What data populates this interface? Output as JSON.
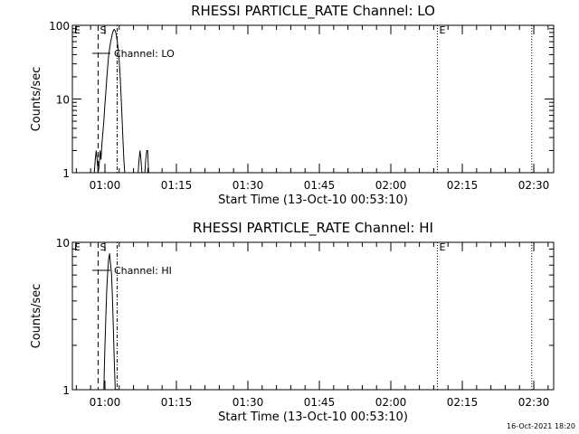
{
  "chart_data": [
    {
      "type": "line",
      "title": "RHESSI PARTICLE_RATE Channel: LO",
      "ylabel": "Counts/sec",
      "xlabel": "Start Time (13-Oct-10 00:53:10)",
      "x_units": "minutes since 00:53:10",
      "xlim": [
        0,
        101
      ],
      "ylim": [
        1,
        100
      ],
      "yscale": "log",
      "x_ticks": [
        {
          "value": 6.83,
          "label": "01:00"
        },
        {
          "value": 21.83,
          "label": "01:15"
        },
        {
          "value": 36.83,
          "label": "01:30"
        },
        {
          "value": 51.83,
          "label": "01:45"
        },
        {
          "value": 66.83,
          "label": "02:00"
        },
        {
          "value": 81.83,
          "label": "02:15"
        },
        {
          "value": 96.83,
          "label": "02:30"
        }
      ],
      "y_ticks": [
        {
          "value": 1,
          "label": "1"
        },
        {
          "value": 10,
          "label": "10"
        },
        {
          "value": 100,
          "label": "100"
        }
      ],
      "legend": {
        "label": "Channel: LO",
        "position": "top-left"
      },
      "markers": [
        {
          "label": "E",
          "x": 0,
          "style": "solid"
        },
        {
          "label": "S",
          "x": 5.4,
          "style": "dashed"
        },
        {
          "label": "",
          "x": 9.4,
          "style": "dashdot"
        },
        {
          "label": "E",
          "x": 76.6,
          "style": "dotted"
        },
        {
          "label": "",
          "x": 96.4,
          "style": "dotted"
        }
      ],
      "series": [
        {
          "name": "Channel: LO",
          "x": [
            4.6,
            4.8,
            5.0,
            5.2,
            5.4,
            5.6,
            5.8,
            6.0,
            6.2,
            6.4,
            6.6,
            6.8,
            7.0,
            7.2,
            7.4,
            7.6,
            7.8,
            8.0,
            8.2,
            8.4,
            8.6,
            8.8,
            9.0,
            9.2,
            9.4,
            9.6,
            9.8,
            10.0,
            10.2,
            10.4,
            10.6,
            10.8,
            11.0,
            11.2,
            11.4,
            11.6,
            11.8,
            12.0,
            12.2,
            12.4,
            12.6,
            12.8,
            13.0,
            13.2,
            13.4,
            13.6,
            13.8,
            14.0,
            14.2,
            14.4,
            14.6,
            14.8,
            15.0,
            15.2,
            15.4,
            15.6,
            15.8,
            16.0
          ],
          "y": [
            1.0,
            1.5,
            2.0,
            1.5,
            1.0,
            1.2,
            2.0,
            1.5,
            2.5,
            3.5,
            5.0,
            8.0,
            12.0,
            18.0,
            27.0,
            38.0,
            48.0,
            58.0,
            67.0,
            77.0,
            85.0,
            88.0,
            84.0,
            75.0,
            62.0,
            48.0,
            35.0,
            22.0,
            12.0,
            6.0,
            3.0,
            1.5,
            1.0,
            1.0,
            1.0,
            1.0,
            1.0,
            1.0,
            1.0,
            1.0,
            1.0,
            1.0,
            1.0,
            1.0,
            1.0,
            1.0,
            1.0,
            1.5,
            2.0,
            1.5,
            1.0,
            1.0,
            1.0,
            1.0,
            1.5,
            2.0,
            2.0,
            1.0
          ]
        }
      ]
    },
    {
      "type": "line",
      "title": "RHESSI PARTICLE_RATE Channel: HI",
      "ylabel": "Counts/sec",
      "xlabel": "Start Time (13-Oct-10 00:53:10)",
      "x_units": "minutes since 00:53:10",
      "xlim": [
        0,
        101
      ],
      "ylim": [
        1,
        10
      ],
      "yscale": "log",
      "x_ticks": [
        {
          "value": 6.83,
          "label": "01:00"
        },
        {
          "value": 21.83,
          "label": "01:15"
        },
        {
          "value": 36.83,
          "label": "01:30"
        },
        {
          "value": 51.83,
          "label": "01:45"
        },
        {
          "value": 66.83,
          "label": "02:00"
        },
        {
          "value": 81.83,
          "label": "02:15"
        },
        {
          "value": 96.83,
          "label": "02:30"
        }
      ],
      "y_ticks": [
        {
          "value": 1,
          "label": "1"
        },
        {
          "value": 10,
          "label": "10"
        }
      ],
      "legend": {
        "label": "Channel: HI",
        "position": "top-left"
      },
      "markers": [
        {
          "label": "E",
          "x": 0,
          "style": "solid"
        },
        {
          "label": "S",
          "x": 5.4,
          "style": "dashed"
        },
        {
          "label": "",
          "x": 9.4,
          "style": "dashdot"
        },
        {
          "label": "E",
          "x": 76.6,
          "style": "dotted"
        },
        {
          "label": "",
          "x": 96.4,
          "style": "dotted"
        }
      ],
      "series": [
        {
          "name": "Channel: HI",
          "x": [
            6.6,
            6.8,
            7.0,
            7.2,
            7.4,
            7.6,
            7.8,
            8.0,
            8.2,
            8.4,
            8.6,
            8.8,
            9.0
          ],
          "y": [
            1.0,
            1.8,
            3.0,
            4.6,
            6.2,
            7.6,
            8.4,
            7.2,
            6.2,
            4.4,
            2.6,
            1.5,
            1.0
          ]
        }
      ]
    }
  ],
  "footer": {
    "timestamp": "16-Oct-2021 18:20"
  }
}
